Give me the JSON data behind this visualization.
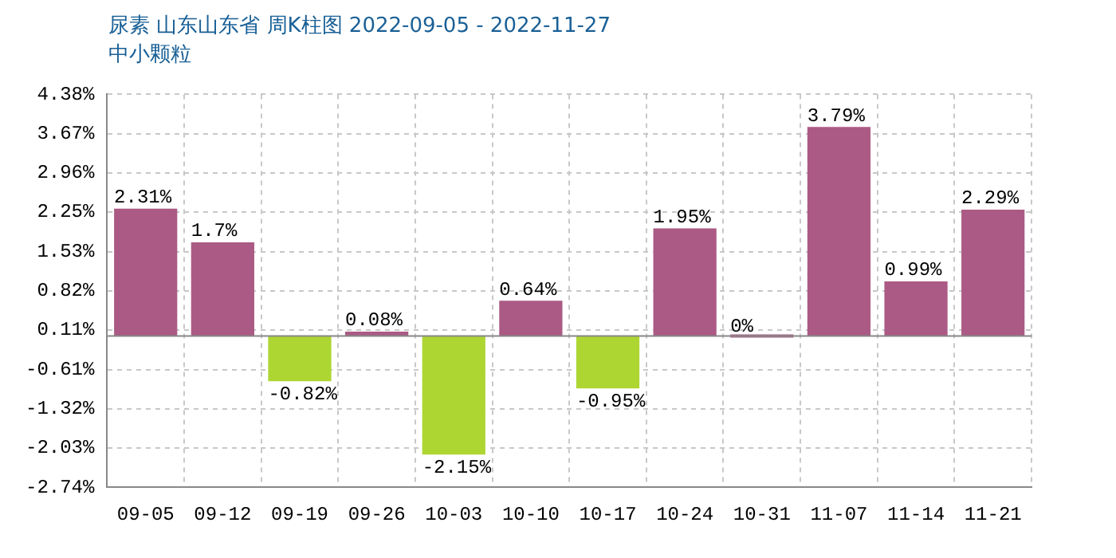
{
  "chart_data": {
    "type": "bar",
    "title": "尿素 山东山东省 周K柱图 2022-09-05 - 2022-11-27",
    "subtitle": "中小颗粒",
    "categories": [
      "09-05",
      "09-12",
      "09-19",
      "09-26",
      "10-03",
      "10-10",
      "10-17",
      "10-24",
      "10-31",
      "11-07",
      "11-14",
      "11-21"
    ],
    "values": [
      2.31,
      1.7,
      -0.82,
      0.08,
      -2.15,
      0.64,
      -0.95,
      1.95,
      0,
      3.79,
      0.99,
      2.29
    ],
    "colors": [
      "#ab5a85",
      "#ab5a85",
      "#add633",
      "#ab5a85",
      "#add633",
      "#ab5a85",
      "#add633",
      "#ab5a85",
      "#ab5a85",
      "#ab5a85",
      "#ab5a85",
      "#ab5a85"
    ],
    "value_labels": [
      "2.31%",
      "1.7%",
      "-0.82%",
      "0.08%",
      "-2.15%",
      "0.64%",
      "-0.95%",
      "1.95%",
      "0%",
      "3.79%",
      "0.99%",
      "2.29%"
    ],
    "ylim": [
      -2.74,
      4.38
    ],
    "yticks": [
      {
        "value": -2.74,
        "label": "-2.74%"
      },
      {
        "value": -2.03,
        "label": "-2.03%"
      },
      {
        "value": -1.32,
        "label": "-1.32%"
      },
      {
        "value": -0.61,
        "label": "-0.61%"
      },
      {
        "value": 0.11,
        "label": "0.11%"
      },
      {
        "value": 0.82,
        "label": "0.82%"
      },
      {
        "value": 1.53,
        "label": "1.53%"
      },
      {
        "value": 2.25,
        "label": "2.25%"
      },
      {
        "value": 2.96,
        "label": "2.96%"
      },
      {
        "value": 3.67,
        "label": "3.67%"
      },
      {
        "value": 4.38,
        "label": "4.38%"
      }
    ],
    "grid": true
  }
}
